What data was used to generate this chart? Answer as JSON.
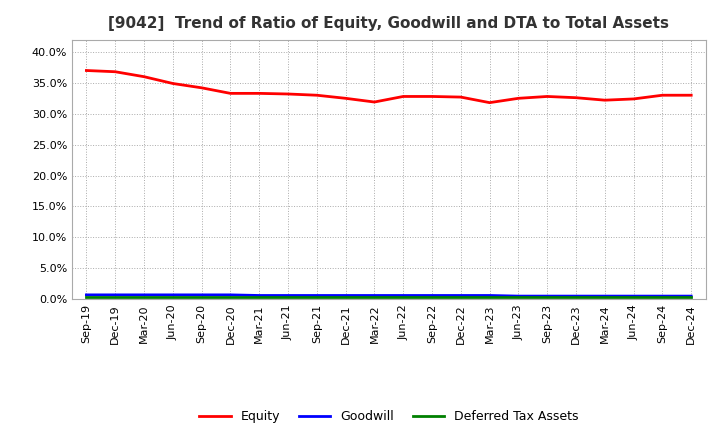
{
  "title": "[9042]  Trend of Ratio of Equity, Goodwill and DTA to Total Assets",
  "x_labels": [
    "Sep-19",
    "Dec-19",
    "Mar-20",
    "Jun-20",
    "Sep-20",
    "Dec-20",
    "Mar-21",
    "Jun-21",
    "Sep-21",
    "Dec-21",
    "Mar-22",
    "Jun-22",
    "Sep-22",
    "Dec-22",
    "Mar-23",
    "Jun-23",
    "Sep-23",
    "Dec-23",
    "Mar-24",
    "Jun-24",
    "Sep-24",
    "Dec-24"
  ],
  "equity": [
    0.37,
    0.368,
    0.36,
    0.349,
    0.342,
    0.333,
    0.333,
    0.332,
    0.33,
    0.325,
    0.319,
    0.328,
    0.328,
    0.327,
    0.318,
    0.325,
    0.328,
    0.326,
    0.322,
    0.324,
    0.33,
    0.33
  ],
  "goodwill": [
    0.007,
    0.007,
    0.007,
    0.007,
    0.007,
    0.007,
    0.006,
    0.006,
    0.006,
    0.006,
    0.006,
    0.006,
    0.006,
    0.006,
    0.006,
    0.005,
    0.005,
    0.005,
    0.005,
    0.005,
    0.005,
    0.005
  ],
  "dta": [
    0.004,
    0.004,
    0.004,
    0.004,
    0.004,
    0.004,
    0.004,
    0.004,
    0.004,
    0.004,
    0.004,
    0.004,
    0.004,
    0.004,
    0.004,
    0.004,
    0.004,
    0.004,
    0.004,
    0.004,
    0.004,
    0.004
  ],
  "equity_color": "#FF0000",
  "goodwill_color": "#0000FF",
  "dta_color": "#008000",
  "ylim": [
    0.0,
    0.42
  ],
  "yticks": [
    0.0,
    0.05,
    0.1,
    0.15,
    0.2,
    0.25,
    0.3,
    0.35,
    0.4
  ],
  "background_color": "#FFFFFF",
  "plot_bg_color": "#FFFFFF",
  "grid_color": "#AAAAAA",
  "title_fontsize": 11,
  "tick_fontsize": 8,
  "legend_labels": [
    "Equity",
    "Goodwill",
    "Deferred Tax Assets"
  ],
  "line_width": 2.0
}
